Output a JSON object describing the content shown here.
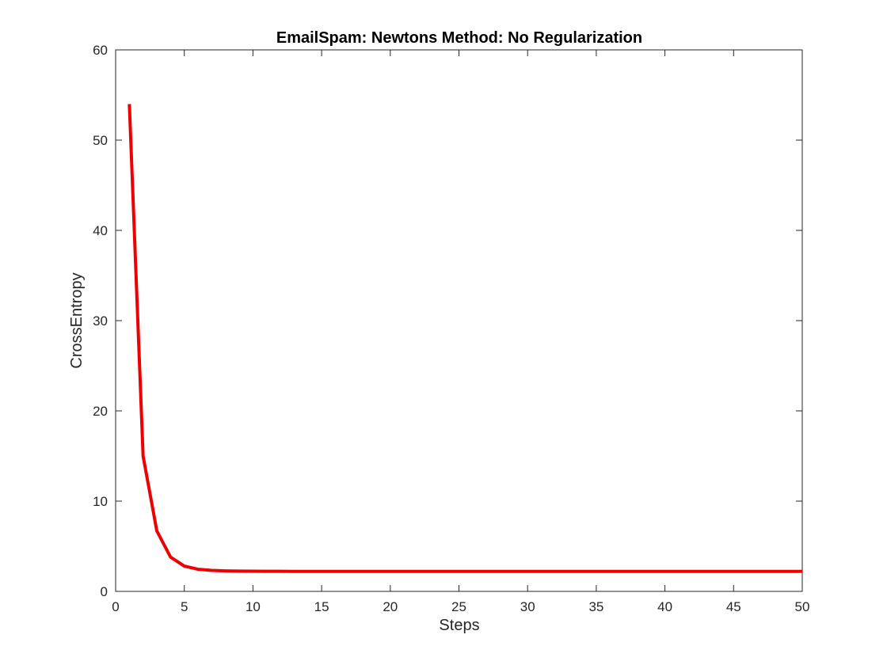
{
  "chart_data": {
    "type": "line",
    "title": "EmailSpam: Newtons Method: No Regularization",
    "xlabel": "Steps",
    "ylabel": "CrossEntropy",
    "xlim": [
      0,
      50
    ],
    "ylim": [
      0,
      60
    ],
    "xticks": [
      0,
      5,
      10,
      15,
      20,
      25,
      30,
      35,
      40,
      45,
      50
    ],
    "yticks": [
      0,
      10,
      20,
      30,
      40,
      50,
      60
    ],
    "grid": false,
    "box": true,
    "series": [
      {
        "color": "#ee0000",
        "x": [
          1,
          2,
          3,
          4,
          5,
          6,
          7,
          8,
          9,
          10,
          11,
          12,
          13,
          14,
          15,
          16,
          17,
          18,
          19,
          20,
          21,
          22,
          23,
          24,
          25,
          26,
          27,
          28,
          29,
          30,
          31,
          32,
          33,
          34,
          35,
          36,
          37,
          38,
          39,
          40,
          41,
          42,
          43,
          44,
          45,
          46,
          47,
          48,
          49,
          50
        ],
        "y": [
          54.0,
          15.0,
          6.7,
          3.8,
          2.8,
          2.45,
          2.32,
          2.27,
          2.25,
          2.24,
          2.23,
          2.23,
          2.22,
          2.22,
          2.22,
          2.22,
          2.22,
          2.22,
          2.22,
          2.22,
          2.22,
          2.22,
          2.22,
          2.22,
          2.22,
          2.22,
          2.22,
          2.22,
          2.22,
          2.22,
          2.22,
          2.22,
          2.22,
          2.22,
          2.22,
          2.22,
          2.22,
          2.22,
          2.22,
          2.22,
          2.22,
          2.22,
          2.22,
          2.22,
          2.22,
          2.22,
          2.22,
          2.22,
          2.22,
          2.22
        ]
      }
    ]
  }
}
